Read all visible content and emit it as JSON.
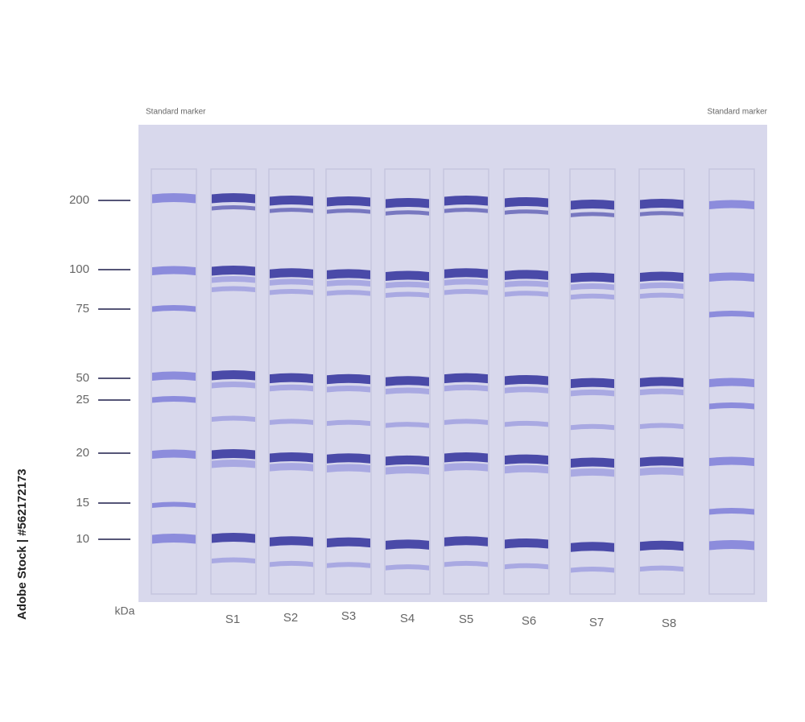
{
  "header": {
    "marker_left": "Standard marker",
    "marker_right": "Standard marker"
  },
  "ladder": {
    "unit": "kDa",
    "labels": [
      "200",
      "100",
      "75",
      "50",
      "25",
      "20",
      "15",
      "10"
    ]
  },
  "samples": [
    "S1",
    "S2",
    "S3",
    "S4",
    "S5",
    "S6",
    "S7",
    "S8"
  ],
  "watermark": "Adobe Stock | #562172173"
}
